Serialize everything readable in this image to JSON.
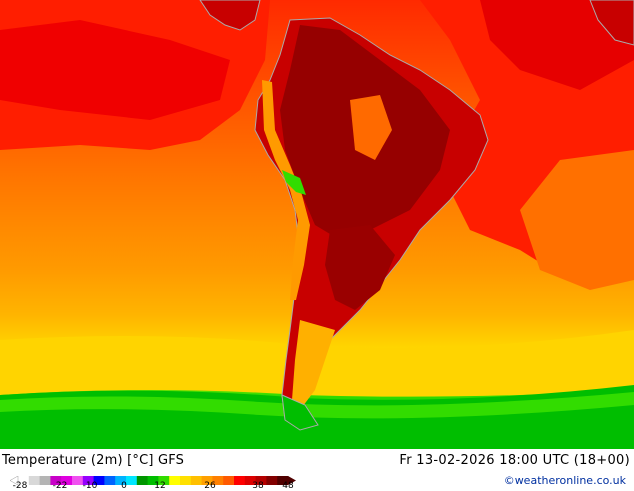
{
  "title": "Temperature (2m) [°C] GFS",
  "valid_time": "Fr 13-02-2026 18:00 UTC (18+00)",
  "credit": "©weatheronline.co.uk",
  "legend": {
    "ticks": [
      "-28",
      "-22",
      "-10",
      "0",
      "12",
      "26",
      "38",
      "48"
    ],
    "colors": [
      "#ffffff",
      "#d8d8d8",
      "#b4b4b4",
      "#c800c8",
      "#e000e0",
      "#f050f0",
      "#9600ff",
      "#0000ff",
      "#0064ff",
      "#00b4ff",
      "#00e6ff",
      "#009600",
      "#00be00",
      "#32dc00",
      "#ffff00",
      "#ffe000",
      "#ffc000",
      "#ffa000",
      "#ff8000",
      "#ff5a00",
      "#ff0000",
      "#dc0000",
      "#b40000",
      "#820000",
      "#500000"
    ]
  },
  "map": {
    "region": "South America",
    "colors": {
      "ocean_warm": "#ff8c00",
      "ocean_hot": "#ff2a00",
      "land_hot": "#c80000",
      "land_extreme": "#8c0000",
      "mild": "#ffd400",
      "cool": "#00be00",
      "cold": "#32dc00",
      "coast": "#aaaaaa"
    }
  }
}
